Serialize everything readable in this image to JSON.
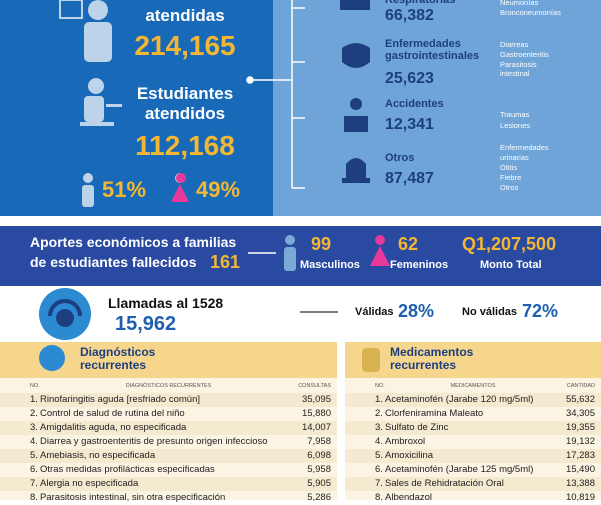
{
  "patients": {
    "label_top": "atendidas",
    "total": "214,165",
    "students_label_1": "Estudiantes",
    "students_label_2": "atendidos",
    "students": "112,168",
    "male_pct": "51%",
    "female_pct": "49%"
  },
  "illnesses": [
    {
      "label": [
        "Respiratorias"
      ],
      "value": "66,382",
      "items": [
        "Neumonías",
        "Bronconeumonías"
      ]
    },
    {
      "label": [
        "Enfermedades",
        "gastrointestinales"
      ],
      "value": "25,623",
      "items": [
        "Diarreas",
        "Gastroenteritis",
        "Parasitosis",
        "intestinal"
      ]
    },
    {
      "label": [
        "Accidentes"
      ],
      "value": "12,341",
      "items": [
        "Traumas",
        "Lesiones"
      ]
    },
    {
      "label": [
        "Otros"
      ],
      "value": "87,487",
      "items": [
        "Enfermedades",
        "urinarias",
        "Otitis",
        "Fiebre",
        "Otros"
      ]
    }
  ],
  "aid": {
    "title_1": "Aportes económicos a familias",
    "title_2": "de estudiantes fallecidos",
    "count": "161",
    "male": "99",
    "male_label": "Masculinos",
    "female": "62",
    "female_label": "Femeninos",
    "amount": "Q1,207,500",
    "amount_label": "Monto Total"
  },
  "calls": {
    "title": "Llamadas al 1528",
    "count": "15,962",
    "valid_label": "Válidas",
    "valid": "28%",
    "invalid_label": "No válidas",
    "invalid": "72%"
  },
  "diagnoses": {
    "title_1": "Diagnósticos",
    "title_2": "recurrentes",
    "headers": [
      "NO.",
      "DIAGNÓSTICOS RECURRENTES",
      "CONSULTAS"
    ],
    "rows": [
      [
        "1.",
        "Rinofaringitis aguda [resfriado común]",
        "35,095"
      ],
      [
        "2.",
        "Control de salud de rutina del niño",
        "15,880"
      ],
      [
        "3.",
        "Amigdalitis aguda, no especificada",
        "14,007"
      ],
      [
        "4.",
        "Diarrea y gastroenteritis de presunto origen infeccioso",
        "7,958"
      ],
      [
        "5.",
        "Amebiasis, no especificada",
        "6,098"
      ],
      [
        "6.",
        "Otras medidas profilácticas especificadas",
        "5,958"
      ],
      [
        "7.",
        "Alergia no especificada",
        "5,905"
      ],
      [
        "8.",
        "Parasitosis intestinal, sin otra especificación",
        "5,286"
      ]
    ]
  },
  "medicines": {
    "title_1": "Medicamentos",
    "title_2": "recurrentes",
    "headers": [
      "NO.",
      "MEDICAMENTOS",
      "CANTIDAD"
    ],
    "rows": [
      [
        "1.",
        "Acetaminofén (Jarabe 120 mg/5ml)",
        "55,632"
      ],
      [
        "2.",
        "Clorfeniramina Maleato",
        "34,305"
      ],
      [
        "3.",
        "Sulfato de Zinc",
        "19,355"
      ],
      [
        "4.",
        "Ambroxol",
        "19,132"
      ],
      [
        "5.",
        "Amoxicilina",
        "17,283"
      ],
      [
        "6.",
        "Acetaminofén (Jarabe 125 mg/5ml)",
        "15,490"
      ],
      [
        "7.",
        "Sales de Rehidratación Oral",
        "13,388"
      ],
      [
        "8.",
        "Albendazol",
        "10,819"
      ]
    ]
  }
}
